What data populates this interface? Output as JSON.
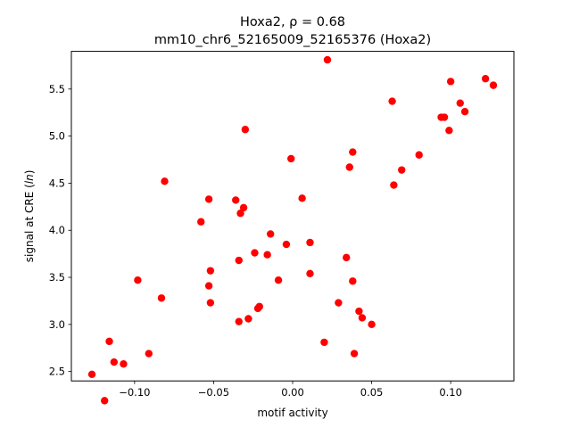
{
  "chart_data": {
    "type": "scatter",
    "title": "Hoxa2, ρ = 0.68",
    "subtitle": "mm10_chr6_52165009_52165376 (Hoxa2)",
    "xlabel": "motif activity",
    "ylabel": "signal at CRE (ln)",
    "xlim": [
      -0.14,
      0.14
    ],
    "ylim": [
      2.4,
      5.9
    ],
    "xticks": [
      -0.1,
      -0.05,
      0.0,
      0.05,
      0.1
    ],
    "xtick_labels": [
      "−0.10",
      "−0.05",
      "0.00",
      "0.05",
      "0.10"
    ],
    "yticks": [
      2.5,
      3.0,
      3.5,
      4.0,
      4.5,
      5.0,
      5.5
    ],
    "ytick_labels": [
      "2.5",
      "3.0",
      "3.5",
      "4.0",
      "4.5",
      "5.0",
      "5.5"
    ],
    "grid": false,
    "marker_color": "#ff0000",
    "points": [
      {
        "x": -0.127,
        "y": 2.47
      },
      {
        "x": -0.119,
        "y": 2.19
      },
      {
        "x": -0.116,
        "y": 2.82
      },
      {
        "x": -0.113,
        "y": 2.6
      },
      {
        "x": -0.107,
        "y": 2.58
      },
      {
        "x": -0.098,
        "y": 3.47
      },
      {
        "x": -0.091,
        "y": 2.69
      },
      {
        "x": -0.083,
        "y": 3.28
      },
      {
        "x": -0.081,
        "y": 4.52
      },
      {
        "x": -0.058,
        "y": 4.09
      },
      {
        "x": -0.053,
        "y": 4.33
      },
      {
        "x": -0.053,
        "y": 3.41
      },
      {
        "x": -0.052,
        "y": 3.57
      },
      {
        "x": -0.052,
        "y": 3.23
      },
      {
        "x": -0.036,
        "y": 4.32
      },
      {
        "x": -0.034,
        "y": 3.03
      },
      {
        "x": -0.034,
        "y": 3.68
      },
      {
        "x": -0.033,
        "y": 4.18
      },
      {
        "x": -0.031,
        "y": 4.24
      },
      {
        "x": -0.03,
        "y": 5.07
      },
      {
        "x": -0.028,
        "y": 3.06
      },
      {
        "x": -0.024,
        "y": 3.76
      },
      {
        "x": -0.022,
        "y": 3.17
      },
      {
        "x": -0.021,
        "y": 3.19
      },
      {
        "x": -0.016,
        "y": 3.74
      },
      {
        "x": -0.014,
        "y": 3.96
      },
      {
        "x": -0.009,
        "y": 3.47
      },
      {
        "x": -0.004,
        "y": 3.85
      },
      {
        "x": -0.001,
        "y": 4.76
      },
      {
        "x": 0.006,
        "y": 4.34
      },
      {
        "x": 0.011,
        "y": 3.87
      },
      {
        "x": 0.011,
        "y": 3.54
      },
      {
        "x": 0.02,
        "y": 2.81
      },
      {
        "x": 0.022,
        "y": 5.81
      },
      {
        "x": 0.029,
        "y": 3.23
      },
      {
        "x": 0.034,
        "y": 3.71
      },
      {
        "x": 0.036,
        "y": 4.67
      },
      {
        "x": 0.038,
        "y": 4.83
      },
      {
        "x": 0.038,
        "y": 3.46
      },
      {
        "x": 0.039,
        "y": 2.69
      },
      {
        "x": 0.042,
        "y": 3.14
      },
      {
        "x": 0.044,
        "y": 3.07
      },
      {
        "x": 0.05,
        "y": 3.0
      },
      {
        "x": 0.063,
        "y": 5.37
      },
      {
        "x": 0.064,
        "y": 4.48
      },
      {
        "x": 0.069,
        "y": 4.64
      },
      {
        "x": 0.08,
        "y": 4.8
      },
      {
        "x": 0.094,
        "y": 5.2
      },
      {
        "x": 0.096,
        "y": 5.2
      },
      {
        "x": 0.099,
        "y": 5.06
      },
      {
        "x": 0.1,
        "y": 5.58
      },
      {
        "x": 0.106,
        "y": 5.35
      },
      {
        "x": 0.109,
        "y": 5.26
      },
      {
        "x": 0.122,
        "y": 5.61
      },
      {
        "x": 0.127,
        "y": 5.54
      }
    ]
  }
}
